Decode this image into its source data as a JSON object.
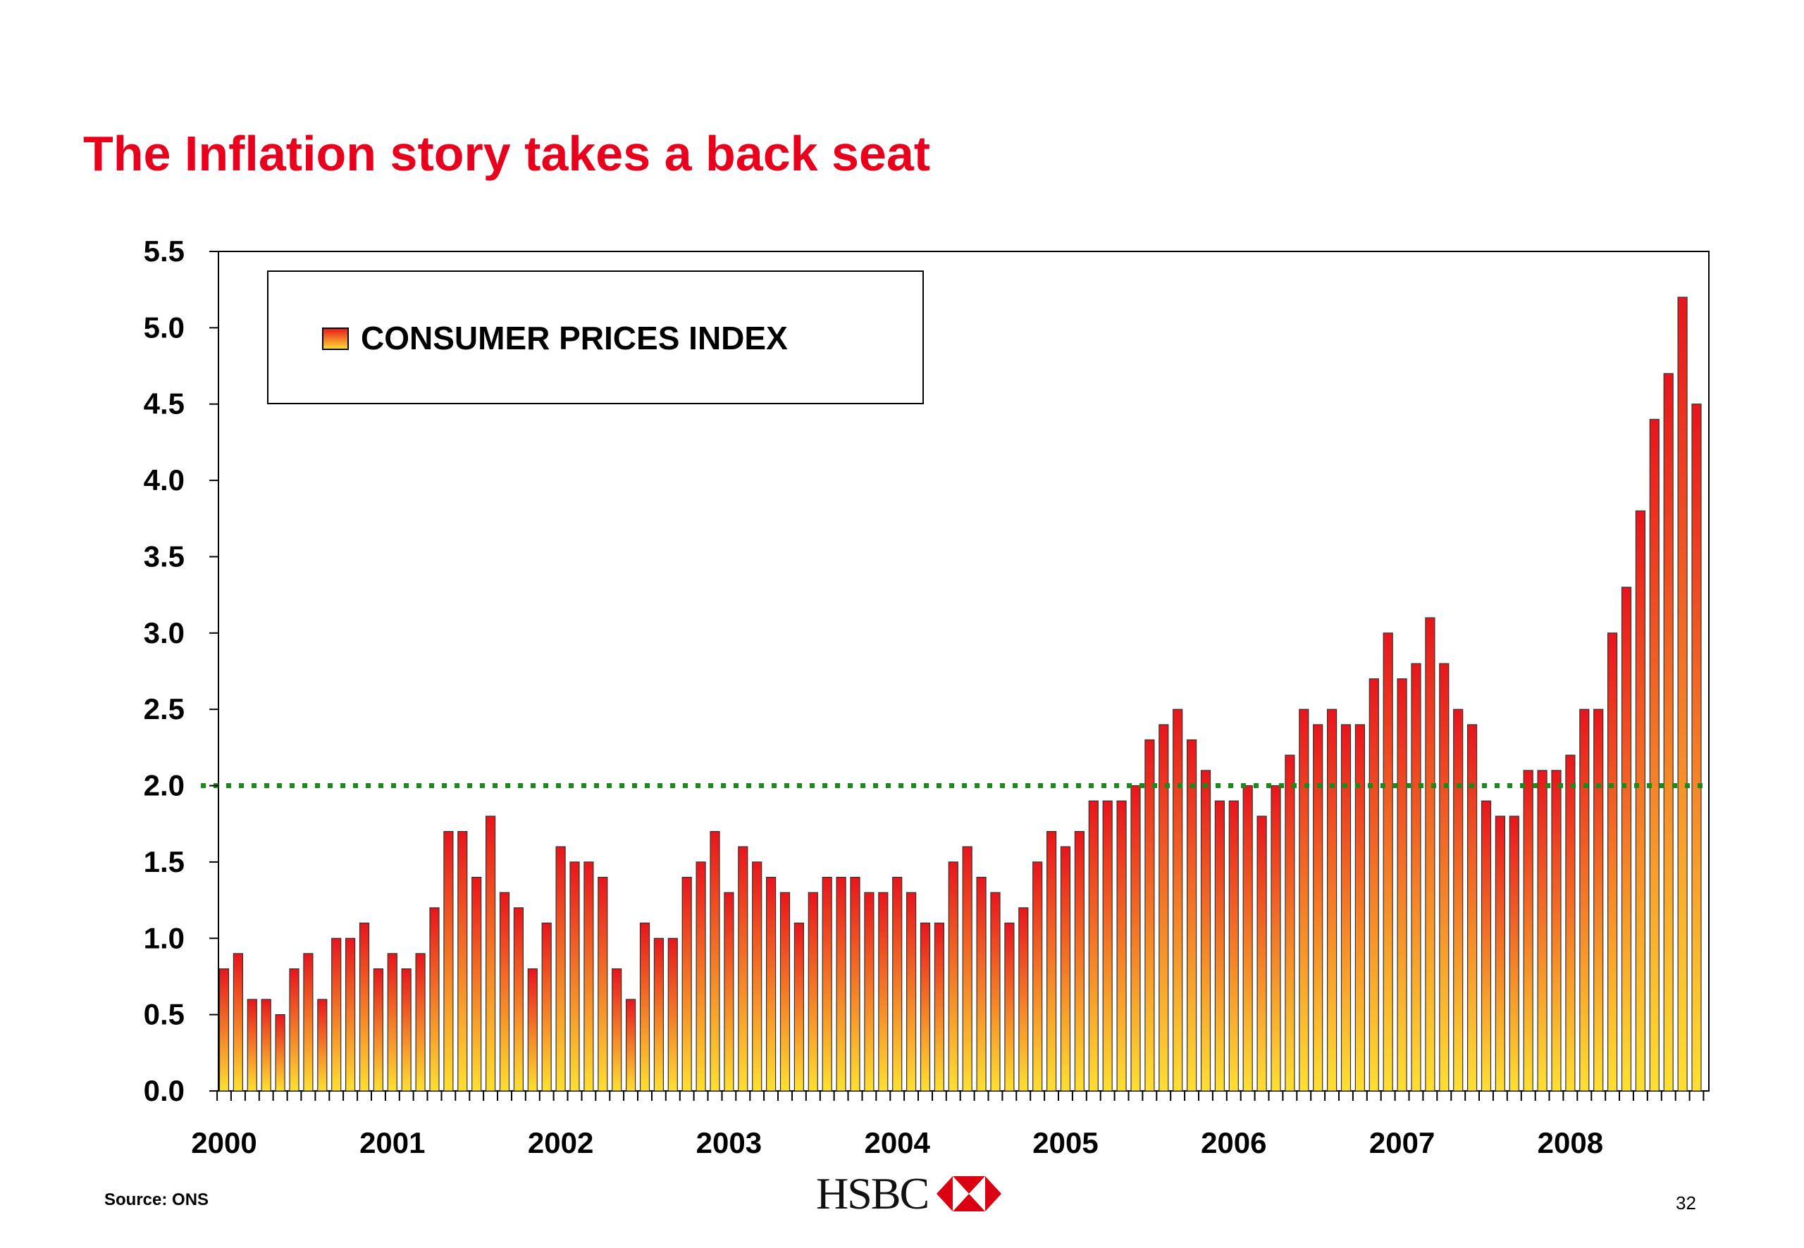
{
  "slide": {
    "title": "The Inflation story takes a back seat",
    "source": "Source: ONS",
    "page_number": "32",
    "logo_text": "HSBC"
  },
  "colors": {
    "title": "#e8001c",
    "bar_top": "#e8151c",
    "bar_bottom": "#ffe033",
    "target_line": "#1a8a1a"
  },
  "chart_data": {
    "type": "bar",
    "legend": [
      "CONSUMER PRICES INDEX"
    ],
    "legend_position": "top-left",
    "grid": false,
    "ylim": [
      0,
      5.5
    ],
    "y_ticks": [
      "0.0",
      "0.5",
      "1.0",
      "1.5",
      "2.0",
      "2.5",
      "3.0",
      "3.5",
      "4.0",
      "4.5",
      "5.0",
      "5.5"
    ],
    "x_tick_labels": [
      "2000",
      "2001",
      "2002",
      "2003",
      "2004",
      "2005",
      "2006",
      "2007",
      "2008"
    ],
    "reference_line": {
      "value": 2.0,
      "style": "dotted"
    },
    "series": [
      {
        "name": "CONSUMER PRICES INDEX",
        "values": [
          0.8,
          0.9,
          0.6,
          0.6,
          0.5,
          0.8,
          0.9,
          0.6,
          1.0,
          1.0,
          1.1,
          0.8,
          0.9,
          0.8,
          0.9,
          1.2,
          1.7,
          1.7,
          1.4,
          1.8,
          1.3,
          1.2,
          0.8,
          1.1,
          1.6,
          1.5,
          1.5,
          1.4,
          0.8,
          0.6,
          1.1,
          1.0,
          1.0,
          1.4,
          1.5,
          1.7,
          1.3,
          1.6,
          1.5,
          1.4,
          1.3,
          1.1,
          1.3,
          1.4,
          1.4,
          1.4,
          1.3,
          1.3,
          1.4,
          1.3,
          1.1,
          1.1,
          1.5,
          1.6,
          1.4,
          1.3,
          1.1,
          1.2,
          1.5,
          1.7,
          1.6,
          1.7,
          1.9,
          1.9,
          1.9,
          2.0,
          2.3,
          2.4,
          2.5,
          2.3,
          2.1,
          1.9,
          1.9,
          2.0,
          1.8,
          2.0,
          2.2,
          2.5,
          2.4,
          2.5,
          2.4,
          2.4,
          2.7,
          3.0,
          2.7,
          2.8,
          3.1,
          2.8,
          2.5,
          2.4,
          1.9,
          1.8,
          1.8,
          2.1,
          2.1,
          2.1,
          2.2,
          2.5,
          2.5,
          3.0,
          3.3,
          3.8,
          4.4,
          4.7,
          5.2,
          4.5
        ]
      }
    ]
  }
}
